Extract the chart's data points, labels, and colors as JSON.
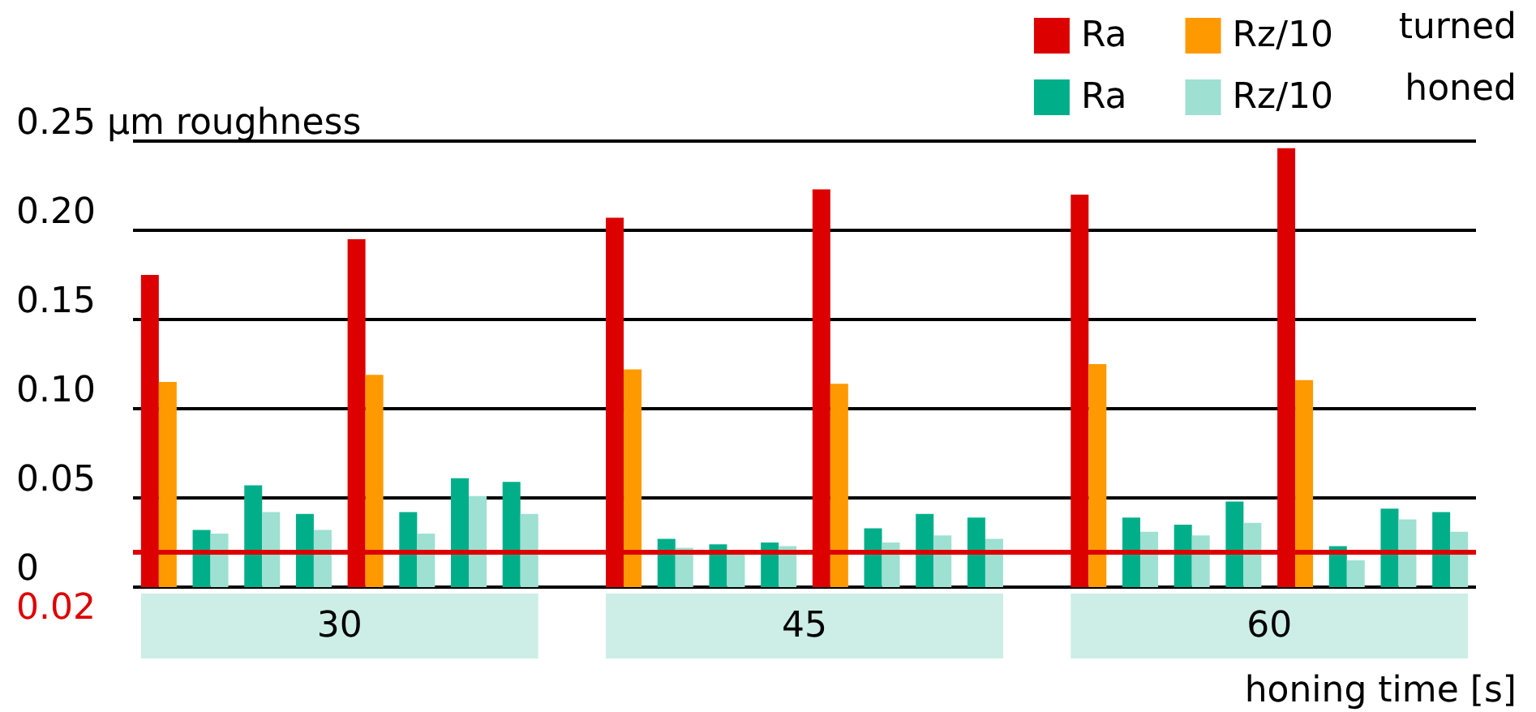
{
  "chart_data": {
    "type": "bar",
    "xlabel": "honing time [s]",
    "categories": [
      null,
      null,
      null,
      null,
      null,
      null,
      null,
      null,
      null,
      null,
      null,
      null,
      null,
      null,
      null,
      null,
      null,
      null,
      null,
      null,
      null,
      null,
      null,
      null,
      null,
      null
    ],
    "series": [
      {
        "name": "Ra",
        "color": "#dd0000",
        "values": [
          0.175,
          null,
          null,
          null,
          0.195,
          null,
          null,
          null,
          null,
          0.207,
          null,
          null,
          null,
          0.223,
          null,
          null,
          null,
          null,
          0.22,
          null,
          null,
          null,
          0.246,
          null,
          null,
          null
        ]
      },
      {
        "name": "Rz/10",
        "color": "#ff9900",
        "values": [
          0.115,
          null,
          null,
          null,
          0.119,
          null,
          null,
          null,
          null,
          0.122,
          null,
          null,
          null,
          0.114,
          null,
          null,
          null,
          null,
          0.125,
          null,
          null,
          null,
          0.116,
          null,
          null,
          null
        ]
      },
      {
        "name": "Ra",
        "color": "#00af8a",
        "values": [
          null,
          0.032,
          0.057,
          0.041,
          null,
          0.042,
          0.061,
          0.059,
          null,
          null,
          0.027,
          0.024,
          0.025,
          null,
          0.033,
          0.041,
          0.039,
          null,
          null,
          0.039,
          0.035,
          0.048,
          null,
          0.023,
          0.044,
          0.042
        ]
      },
      {
        "name": "Rz/10",
        "color": "#9ee0d1",
        "values": [
          null,
          0.03,
          0.042,
          0.032,
          null,
          0.03,
          0.051,
          0.041,
          null,
          null,
          0.022,
          0.02,
          0.023,
          null,
          0.025,
          0.029,
          0.027,
          null,
          null,
          0.031,
          0.029,
          0.036,
          null,
          0.015,
          0.038,
          0.031
        ]
      }
    ],
    "ylim": [
      0,
      0.25
    ],
    "yticks": [
      0,
      0.05,
      {
        "value": 0.1,
        "label": "0.10"
      },
      0.15,
      {
        "value": 0.2,
        "label": "0.20"
      },
      {
        "value": 0.25,
        "label": "0.25 µm roughness"
      }
    ],
    "grid": "y",
    "legend": "top right",
    "ref_lines": [
      {
        "axis": "y",
        "value": 0.02,
        "label": "0.02",
        "color": "#dd0000"
      }
    ],
    "annotations": [
      "30",
      "45",
      "60",
      "turned",
      "honed"
    ]
  }
}
